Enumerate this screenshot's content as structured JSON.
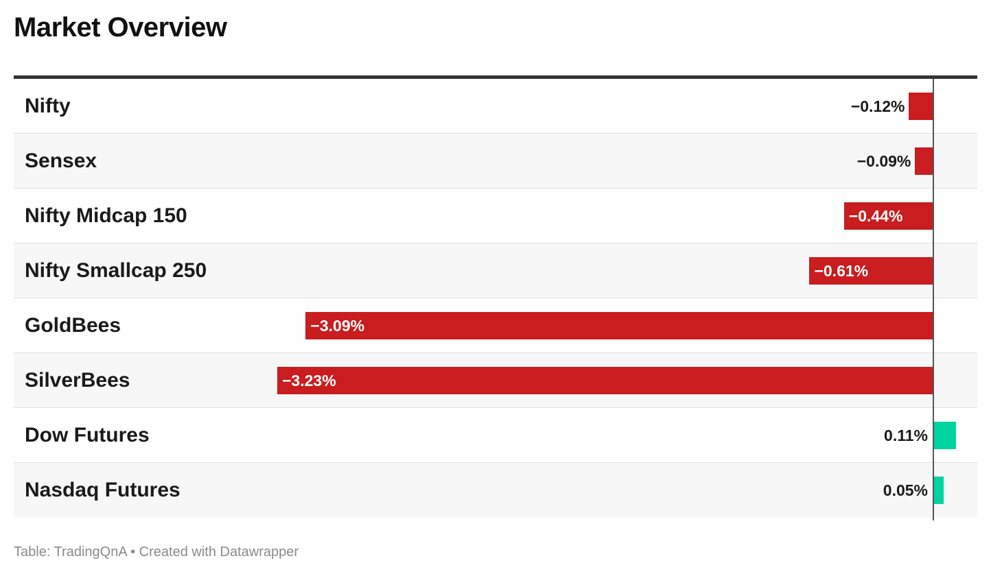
{
  "title": "Market Overview",
  "footer": "Table: TradingQnA • Created with Datawrapper",
  "colors": {
    "negative": "#c91d1f",
    "positive": "#00d4a0",
    "label_on_bar": "#ffffff",
    "label_off_bar": "#1a1a1a"
  },
  "chart_data": {
    "type": "bar",
    "orientation": "horizontal",
    "categories": [
      "Nifty",
      "Sensex",
      "Nifty Midcap 150",
      "Nifty Smallcap 250",
      "GoldBees",
      "SilverBees",
      "Dow Futures",
      "Nasdaq Futures"
    ],
    "values": [
      -0.12,
      -0.09,
      -0.44,
      -0.61,
      -3.09,
      -3.23,
      0.11,
      0.05
    ],
    "value_labels": [
      "−0.12%",
      "−0.09%",
      "−0.44%",
      "−0.61%",
      "−3.09%",
      "−3.23%",
      "0.11%",
      "0.05%"
    ],
    "unit": "%",
    "xlim": [
      -3.23,
      0.11
    ],
    "title": "Market Overview",
    "xlabel": "",
    "ylabel": "",
    "grid": false,
    "legend": "none"
  }
}
